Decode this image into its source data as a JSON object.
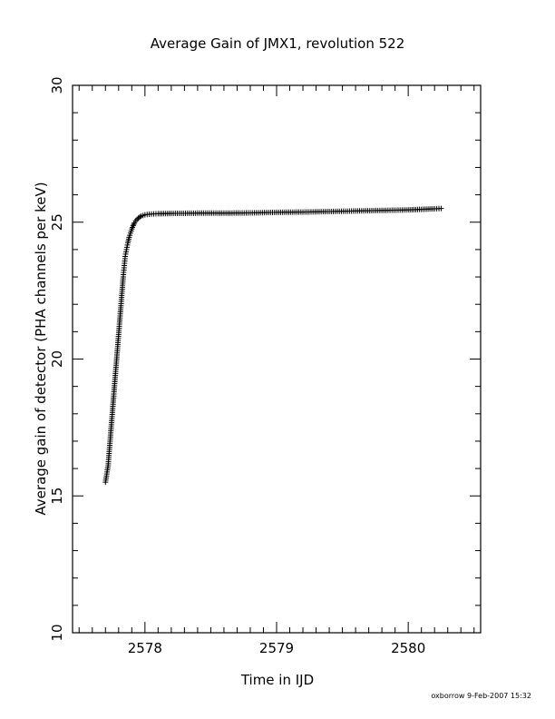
{
  "chart_data": {
    "type": "scatter",
    "title": "Average Gain of JMX1, revolution 522",
    "xlabel": "Time in IJD",
    "ylabel": "Average gain of detector (PHA channels per keV)",
    "xlim": [
      2577.45,
      2580.55
    ],
    "ylim": [
      10,
      30
    ],
    "xticks": [
      2578,
      2579,
      2580
    ],
    "yticks": [
      10,
      15,
      20,
      25,
      30
    ],
    "marker": "+",
    "grid": false,
    "series": [
      {
        "points": [
          [
            2577.7,
            15.5
          ],
          [
            2577.71,
            15.8
          ],
          [
            2577.72,
            16.1
          ],
          [
            2577.725,
            16.4
          ],
          [
            2577.73,
            16.7
          ],
          [
            2577.735,
            17.0
          ],
          [
            2577.74,
            17.3
          ],
          [
            2577.745,
            17.6
          ],
          [
            2577.75,
            17.9
          ],
          [
            2577.755,
            18.2
          ],
          [
            2577.76,
            18.5
          ],
          [
            2577.765,
            18.8
          ],
          [
            2577.77,
            19.1
          ],
          [
            2577.775,
            19.4
          ],
          [
            2577.78,
            19.7
          ],
          [
            2577.785,
            20.0
          ],
          [
            2577.79,
            20.3
          ],
          [
            2577.795,
            20.6
          ],
          [
            2577.8,
            20.9
          ],
          [
            2577.805,
            21.2
          ],
          [
            2577.81,
            21.5
          ],
          [
            2577.815,
            21.8
          ],
          [
            2577.82,
            22.1
          ],
          [
            2577.825,
            22.4
          ],
          [
            2577.83,
            22.7
          ],
          [
            2577.835,
            23.0
          ],
          [
            2577.84,
            23.25
          ],
          [
            2577.845,
            23.5
          ],
          [
            2577.85,
            23.75
          ],
          [
            2577.86,
            24.0
          ],
          [
            2577.87,
            24.25
          ],
          [
            2577.88,
            24.45
          ],
          [
            2577.89,
            24.6
          ],
          [
            2577.9,
            24.75
          ],
          [
            2577.91,
            24.87
          ],
          [
            2577.92,
            24.97
          ],
          [
            2577.93,
            25.05
          ],
          [
            2577.95,
            25.15
          ],
          [
            2577.97,
            25.22
          ],
          [
            2578.0,
            25.27
          ],
          [
            2578.05,
            25.3
          ],
          [
            2578.1,
            25.31
          ],
          [
            2578.2,
            25.32
          ],
          [
            2578.4,
            25.33
          ],
          [
            2578.6,
            25.33
          ],
          [
            2578.8,
            25.34
          ],
          [
            2579.0,
            25.36
          ],
          [
            2579.2,
            25.37
          ],
          [
            2579.4,
            25.39
          ],
          [
            2579.6,
            25.41
          ],
          [
            2579.8,
            25.43
          ],
          [
            2580.0,
            25.45
          ],
          [
            2580.1,
            25.47
          ],
          [
            2580.2,
            25.49
          ],
          [
            2580.25,
            25.5
          ]
        ]
      }
    ]
  },
  "footer": {
    "credit": "oxborrow  9-Feb-2007 15:32"
  }
}
